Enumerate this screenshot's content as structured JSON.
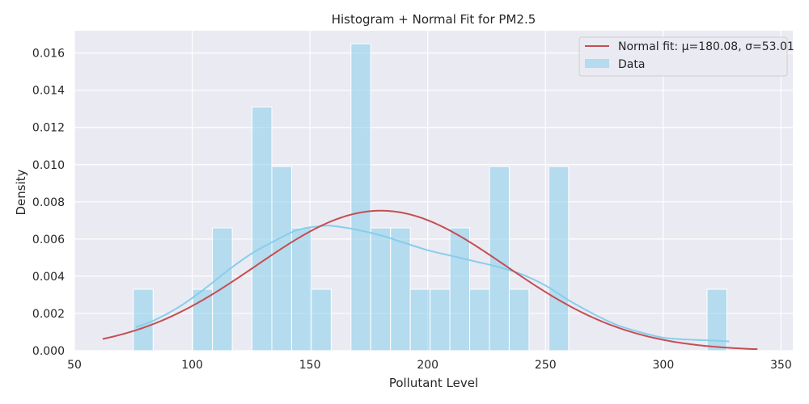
{
  "chart_data": {
    "type": "bar",
    "title": "Histogram + Normal Fit for PM2.5",
    "xlabel": "Pollutant Level",
    "ylabel": "Density",
    "xlim": [
      50,
      355
    ],
    "ylim": [
      0,
      0.0172
    ],
    "xticks": [
      50,
      100,
      150,
      200,
      250,
      300,
      350
    ],
    "yticks": [
      0.0,
      0.002,
      0.004,
      0.006,
      0.008,
      0.01,
      0.012,
      0.014,
      0.016
    ],
    "ytick_labels": [
      "0.000",
      "0.002",
      "0.004",
      "0.006",
      "0.008",
      "0.010",
      "0.012",
      "0.014",
      "0.016"
    ],
    "grid": true,
    "legend_position": "top-right",
    "bins": [
      {
        "x0": 75.0,
        "x1": 83.4,
        "density": 0.0033
      },
      {
        "x0": 100.2,
        "x1": 108.6,
        "density": 0.0033
      },
      {
        "x0": 108.6,
        "x1": 117.0,
        "density": 0.0066
      },
      {
        "x0": 125.4,
        "x1": 133.8,
        "density": 0.0131
      },
      {
        "x0": 133.8,
        "x1": 142.2,
        "density": 0.0099
      },
      {
        "x0": 142.2,
        "x1": 150.6,
        "density": 0.0066
      },
      {
        "x0": 150.6,
        "x1": 159.0,
        "density": 0.0033
      },
      {
        "x0": 167.4,
        "x1": 175.8,
        "density": 0.0165
      },
      {
        "x0": 175.8,
        "x1": 184.2,
        "density": 0.0066
      },
      {
        "x0": 184.2,
        "x1": 192.6,
        "density": 0.0066
      },
      {
        "x0": 192.6,
        "x1": 201.0,
        "density": 0.0033
      },
      {
        "x0": 201.0,
        "x1": 209.4,
        "density": 0.0033
      },
      {
        "x0": 209.4,
        "x1": 217.8,
        "density": 0.0066
      },
      {
        "x0": 217.8,
        "x1": 226.2,
        "density": 0.0033
      },
      {
        "x0": 226.2,
        "x1": 234.6,
        "density": 0.0099
      },
      {
        "x0": 234.6,
        "x1": 243.0,
        "density": 0.0033
      },
      {
        "x0": 251.4,
        "x1": 259.8,
        "density": 0.0099
      },
      {
        "x0": 318.6,
        "x1": 327.0,
        "density": 0.0033
      }
    ],
    "kde": {
      "name": "",
      "x": [
        76,
        85,
        95,
        105,
        115,
        125,
        135,
        145,
        155,
        160,
        170,
        180,
        190,
        200,
        210,
        220,
        230,
        240,
        250,
        260,
        270,
        280,
        290,
        300,
        310,
        320,
        328
      ],
      "y": [
        0.00125,
        0.0017,
        0.0024,
        0.0033,
        0.0043,
        0.0052,
        0.0059,
        0.0065,
        0.0067,
        0.0067,
        0.0065,
        0.0062,
        0.0058,
        0.0054,
        0.0051,
        0.0048,
        0.0045,
        0.0041,
        0.0035,
        0.0027,
        0.002,
        0.0014,
        0.001,
        0.0007,
        0.0006,
        0.00055,
        0.0005
      ]
    },
    "normal_fit": {
      "name": "Normal fit: μ=180.08, σ=53.01",
      "mu": 180.08,
      "sigma": 53.01,
      "x_range": [
        62,
        340
      ]
    },
    "legend": [
      "Normal fit: μ=180.08, σ=53.01",
      "Data"
    ],
    "colors": {
      "background": "#eaeaf2",
      "grid": "#ffffff",
      "bar_fill": "#87ceeb",
      "bar_opacity": 0.55,
      "kde_line": "#87ceeb",
      "normal_line": "#c44e52",
      "text": "#262626"
    }
  }
}
